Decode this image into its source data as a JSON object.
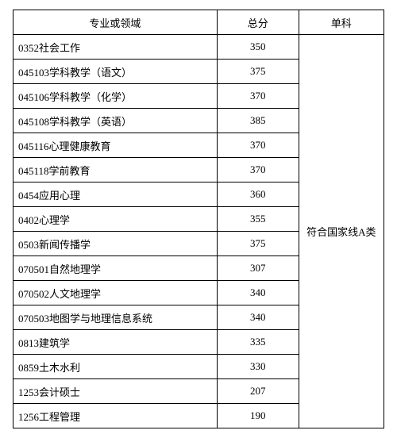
{
  "headers": {
    "major": "专业或领域",
    "total": "总分",
    "single": "单科"
  },
  "merged_note": "符合国家线A类",
  "rows": [
    {
      "major": "0352社会工作",
      "score": "350"
    },
    {
      "major": "045103学科教学（语文）",
      "score": "375"
    },
    {
      "major": "045106学科教学（化学）",
      "score": "370"
    },
    {
      "major": "045108学科教学（英语）",
      "score": "385"
    },
    {
      "major": "045116心理健康教育",
      "score": "370"
    },
    {
      "major": "045118学前教育",
      "score": "370"
    },
    {
      "major": "0454应用心理",
      "score": "360"
    },
    {
      "major": "0402心理学",
      "score": "355"
    },
    {
      "major": "0503新闻传播学",
      "score": "375"
    },
    {
      "major": "070501自然地理学",
      "score": "307"
    },
    {
      "major": "070502人文地理学",
      "score": "340"
    },
    {
      "major": "070503地图学与地理信息系统",
      "score": "340"
    },
    {
      "major": "0813建筑学",
      "score": "335"
    },
    {
      "major": "0859土木水利",
      "score": "330"
    },
    {
      "major": "1253会计硕士",
      "score": "207"
    },
    {
      "major": "1256工程管理",
      "score": "190"
    }
  ]
}
